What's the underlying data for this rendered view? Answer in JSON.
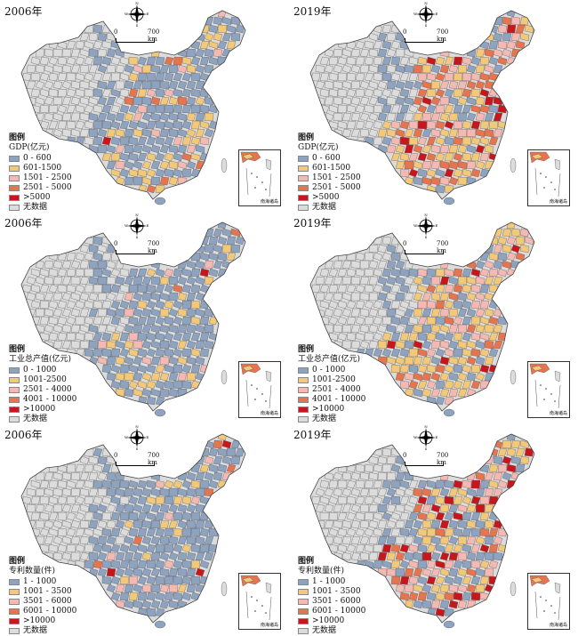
{
  "colors": {
    "c1": "#8ea3bf",
    "c2": "#f2c97a",
    "c3": "#f5b9b3",
    "c4": "#e6754f",
    "c5": "#c8161d",
    "nodata": "#dcdcdc",
    "border": "#555555"
  },
  "compass": {
    "n": "N",
    "s": "S",
    "e": "E",
    "w": "W"
  },
  "scale": {
    "zero": "0",
    "km": "700 km"
  },
  "inset_label": "南海诸岛",
  "legend_title": "图例",
  "panels": [
    {
      "year": "2006年",
      "variable": "GDP(亿元)",
      "classes": [
        "0 - 600",
        "601-1500",
        "1501 - 2500",
        "2501 - 5000",
        ">5000",
        "无数据"
      ],
      "shares": [
        0.6,
        0.25,
        0.1,
        0.04,
        0.01
      ]
    },
    {
      "year": "2019年",
      "variable": "GDP(亿元)",
      "classes": [
        "0 - 600",
        "601-1500",
        "1501 - 2500",
        "2501 - 5000",
        ">5000",
        "无数据"
      ],
      "shares": [
        0.18,
        0.32,
        0.22,
        0.2,
        0.08
      ]
    },
    {
      "year": "2006年",
      "variable": "工业总产值(亿元)",
      "classes": [
        "0 - 1000",
        "1001-2500",
        "2501 - 4000",
        "4001 - 10000",
        ">10000",
        "无数据"
      ],
      "shares": [
        0.75,
        0.15,
        0.06,
        0.03,
        0.01
      ]
    },
    {
      "year": "2019年",
      "variable": "工业总产值(亿元)",
      "classes": [
        "0 - 1000",
        "1001-2500",
        "2501 - 4000",
        "4001 - 10000",
        ">10000",
        "无数据"
      ],
      "shares": [
        0.25,
        0.4,
        0.18,
        0.12,
        0.05
      ]
    },
    {
      "year": "2006年",
      "variable": "专利数量(件)",
      "classes": [
        "1 - 1000",
        "1001 - 3500",
        "3501 - 6000",
        "6001 - 10000",
        ">10000",
        "无数据"
      ],
      "shares": [
        0.82,
        0.1,
        0.04,
        0.02,
        0.02
      ]
    },
    {
      "year": "2019年",
      "variable": "专利数量(件)",
      "classes": [
        "1 - 1000",
        "1001 - 3500",
        "3501 - 6000",
        "6001 - 10000",
        ">10000",
        "无数据"
      ],
      "shares": [
        0.28,
        0.27,
        0.17,
        0.13,
        0.15
      ]
    }
  ]
}
